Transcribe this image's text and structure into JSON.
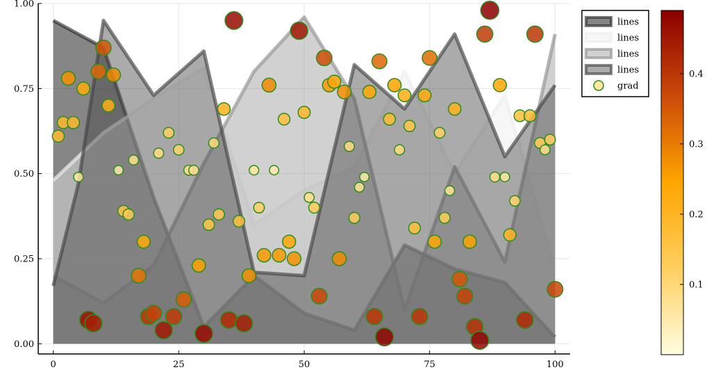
{
  "chart_data": {
    "type": "area",
    "title": "",
    "xlabel": "",
    "ylabel": "",
    "xlim": [
      -3,
      103
    ],
    "ylim": [
      -0.03,
      1.0
    ],
    "grid": true,
    "legend_position": "top-right",
    "x_ticks": [
      0,
      25,
      50,
      75,
      100
    ],
    "x_tick_labels": [
      "0",
      "25",
      "50",
      "75",
      "100"
    ],
    "y_ticks": [
      0.0,
      0.25,
      0.5,
      0.75,
      1.0
    ],
    "y_tick_labels": [
      "0.00",
      "0.25",
      "0.50",
      "0.75",
      "1.00"
    ],
    "line_series": [
      {
        "name": "lines",
        "color": "#222222",
        "fill_opacity": 0.55,
        "line_opacity": 0.6,
        "x": [
          0,
          10,
          20,
          30,
          40,
          50,
          60,
          70,
          80,
          90,
          100
        ],
        "y": [
          0.95,
          0.87,
          0.43,
          0.05,
          0.2,
          0.09,
          0.04,
          0.29,
          0.22,
          0.18,
          0.02
        ]
      },
      {
        "name": "lines",
        "color": "#eeeeee",
        "fill_opacity": 0.45,
        "line_opacity": 0.7,
        "x": [
          0,
          10,
          20,
          30,
          40,
          50,
          60,
          70,
          80,
          90,
          100
        ],
        "y": [
          0.48,
          0.62,
          0.72,
          0.81,
          0.35,
          0.45,
          0.52,
          0.8,
          0.5,
          0.73,
          0.22
        ]
      },
      {
        "name": "lines",
        "color": "#999999",
        "fill_opacity": 0.45,
        "line_opacity": 0.7,
        "x": [
          0,
          10,
          20,
          30,
          40,
          50,
          60,
          70,
          80,
          90,
          100
        ],
        "y": [
          0.2,
          0.12,
          0.23,
          0.53,
          0.8,
          0.96,
          0.72,
          0.1,
          0.52,
          0.24,
          0.91
        ]
      },
      {
        "name": "lines",
        "color": "#444444",
        "fill_opacity": 0.45,
        "line_opacity": 0.65,
        "x": [
          0,
          5,
          10,
          20,
          30,
          40,
          50,
          60,
          70,
          80,
          90,
          100
        ],
        "y": [
          0.17,
          0.47,
          0.95,
          0.73,
          0.86,
          0.21,
          0.2,
          0.82,
          0.69,
          0.91,
          0.55,
          0.76
        ]
      }
    ],
    "scatter": {
      "name": "grad",
      "x": [
        1,
        2,
        3,
        4,
        5,
        6,
        7,
        8,
        9,
        10,
        11,
        12,
        13,
        14,
        15,
        16,
        17,
        18,
        19,
        20,
        21,
        22,
        23,
        24,
        25,
        26,
        27,
        28,
        29,
        30,
        31,
        32,
        33,
        34,
        35,
        36,
        37,
        38,
        39,
        40,
        41,
        42,
        43,
        44,
        45,
        46,
        47,
        48,
        49,
        50,
        51,
        52,
        53,
        54,
        55,
        56,
        57,
        58,
        59,
        60,
        61,
        62,
        63,
        64,
        65,
        66,
        67,
        68,
        69,
        70,
        71,
        72,
        73,
        74,
        75,
        76,
        77,
        78,
        79,
        80,
        81,
        82,
        83,
        84,
        85,
        86,
        87,
        88,
        89,
        90,
        91,
        92,
        93,
        94,
        95,
        96,
        97,
        98,
        99,
        100
      ],
      "y": [
        0.61,
        0.65,
        0.78,
        0.65,
        0.49,
        0.75,
        0.07,
        0.06,
        0.8,
        0.87,
        0.7,
        0.79,
        0.51,
        0.39,
        0.38,
        0.54,
        0.2,
        0.3,
        0.08,
        0.09,
        0.56,
        0.04,
        0.62,
        0.08,
        0.57,
        0.13,
        0.51,
        0.51,
        0.23,
        0.03,
        0.35,
        0.59,
        0.38,
        0.69,
        0.07,
        0.95,
        0.36,
        0.06,
        0.2,
        0.51,
        0.4,
        0.26,
        0.76,
        0.51,
        0.26,
        0.66,
        0.3,
        0.25,
        0.92,
        0.68,
        0.43,
        0.4,
        0.14,
        0.84,
        0.76,
        0.77,
        0.25,
        0.74,
        0.58,
        0.37,
        0.46,
        0.49,
        0.74,
        0.08,
        0.83,
        0.02,
        0.66,
        0.76,
        0.57,
        0.73,
        0.64,
        0.34,
        0.08,
        0.73,
        0.84,
        0.3,
        0.62,
        0.37,
        0.45,
        0.69,
        0.19,
        0.14,
        0.3,
        0.05,
        0.01,
        0.91,
        0.98,
        0.49,
        0.76,
        0.49,
        0.32,
        0.42,
        0.67,
        0.07,
        0.67,
        0.91,
        0.59,
        0.57,
        0.6,
        0.16
      ],
      "z": [
        0.18,
        0.19,
        0.27,
        0.19,
        0.06,
        0.23,
        0.46,
        0.44,
        0.33,
        0.35,
        0.22,
        0.28,
        0.05,
        0.15,
        0.14,
        0.08,
        0.31,
        0.23,
        0.4,
        0.38,
        0.09,
        0.45,
        0.12,
        0.39,
        0.11,
        0.34,
        0.08,
        0.08,
        0.25,
        0.47,
        0.15,
        0.1,
        0.14,
        0.21,
        0.42,
        0.47,
        0.16,
        0.44,
        0.27,
        0.06,
        0.12,
        0.26,
        0.28,
        0.05,
        0.26,
        0.17,
        0.24,
        0.27,
        0.45,
        0.19,
        0.08,
        0.13,
        0.37,
        0.36,
        0.26,
        0.24,
        0.28,
        0.27,
        0.09,
        0.13,
        0.07,
        0.05,
        0.24,
        0.4,
        0.33,
        0.48,
        0.18,
        0.25,
        0.09,
        0.22,
        0.15,
        0.17,
        0.4,
        0.23,
        0.32,
        0.24,
        0.12,
        0.13,
        0.07,
        0.21,
        0.35,
        0.38,
        0.25,
        0.41,
        0.48,
        0.39,
        0.49,
        0.08,
        0.24,
        0.06,
        0.2,
        0.11,
        0.17,
        0.42,
        0.18,
        0.4,
        0.13,
        0.08,
        0.12,
        0.37
      ],
      "fill_opacity": 0.85,
      "edge_color": "#2e8b1e"
    },
    "colorbar": {
      "min": 0.0,
      "max": 0.49,
      "ticks": [
        0.1,
        0.2,
        0.3,
        0.4
      ],
      "tick_labels": [
        "0.1",
        "0.2",
        "0.3",
        "0.4"
      ],
      "stops": [
        "#fffde0",
        "#ffcf60",
        "#ffa500",
        "#cc4a08",
        "#8b0000"
      ]
    }
  }
}
